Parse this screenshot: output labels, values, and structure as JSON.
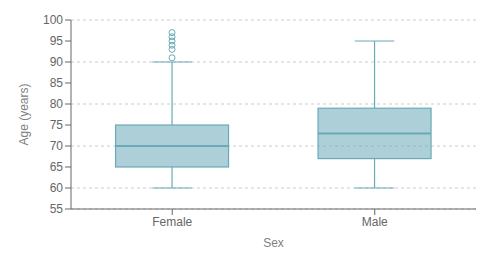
{
  "chart_data": {
    "type": "box",
    "xlabel": "Sex",
    "ylabel": "Age (years)",
    "categories": [
      "Female",
      "Male"
    ],
    "whisker_low": [
      60,
      60
    ],
    "q1": [
      65,
      67
    ],
    "median": [
      70,
      73
    ],
    "q3": [
      75,
      79
    ],
    "whisker_high": [
      90,
      95
    ],
    "outliers": [
      [
        91,
        93,
        94,
        95,
        96,
        97
      ],
      []
    ],
    "color": "#6aaab8",
    "ylim": [
      55,
      100
    ],
    "yticks": [
      55,
      60,
      65,
      70,
      75,
      80,
      85,
      90,
      95,
      100
    ],
    "grid": true
  }
}
